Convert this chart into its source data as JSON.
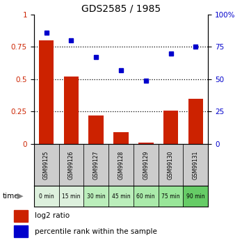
{
  "title": "GDS2585 / 1985",
  "samples": [
    "GSM99125",
    "GSM99126",
    "GSM99127",
    "GSM99128",
    "GSM99129",
    "GSM99130",
    "GSM99131"
  ],
  "time_labels": [
    "0 min",
    "15 min",
    "30 min",
    "45 min",
    "60 min",
    "75 min",
    "90 min"
  ],
  "log2_ratio": [
    0.8,
    0.52,
    0.22,
    0.09,
    0.01,
    0.26,
    0.35
  ],
  "percentile_rank": [
    86,
    80,
    67,
    57,
    49,
    70,
    75
  ],
  "bar_color": "#cc2200",
  "dot_color": "#0000cc",
  "left_ylim": [
    0,
    1.0
  ],
  "right_ylim": [
    0,
    100
  ],
  "left_yticks": [
    0,
    0.25,
    0.5,
    0.75,
    1.0
  ],
  "right_yticks": [
    0,
    25,
    50,
    75,
    100
  ],
  "sample_bg_color": "#cccccc",
  "time_bg_colors": [
    "#ddf0dd",
    "#ddf0dd",
    "#bbeebb",
    "#bbeebb",
    "#aaeaaa",
    "#99e699",
    "#66cc66"
  ],
  "legend_items": [
    {
      "label": "log2 ratio",
      "color": "#cc2200"
    },
    {
      "label": "percentile rank within the sample",
      "color": "#0000cc"
    }
  ]
}
